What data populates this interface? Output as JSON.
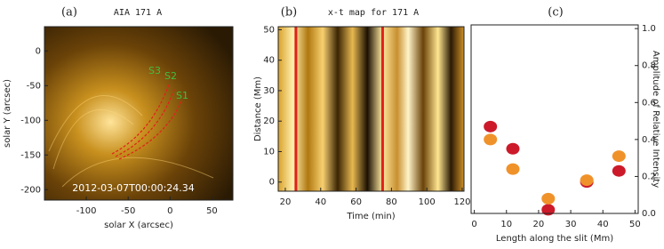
{
  "chart_data": [
    {
      "type": "image",
      "label": "(a)",
      "title": "AIA 171 A",
      "xlabel": "solar X (arcsec)",
      "ylabel": "solar Y (arcsec)",
      "xlim": [
        -150,
        75
      ],
      "ylim": [
        -215,
        35
      ],
      "xticks": [
        -100,
        -50,
        0,
        50
      ],
      "yticks": [
        -200,
        -150,
        -100,
        -50,
        0
      ],
      "annotations": [
        "S3",
        "S2",
        "S1",
        "2012-03-07T00:00:24.34"
      ]
    },
    {
      "type": "image",
      "label": "(b)",
      "title": "x-t map for 171 A",
      "xlabel": "Time (min)",
      "ylabel": "Distance (Mm)",
      "xlim": [
        16,
        121
      ],
      "ylim": [
        -3,
        51
      ],
      "xticks": [
        20,
        40,
        60,
        80,
        100,
        120
      ],
      "yticks": [
        0,
        10,
        20,
        30,
        40,
        50
      ],
      "markers": [
        26,
        75
      ],
      "marker_color": "#e0201c"
    },
    {
      "type": "scatter",
      "label": "(c)",
      "xlabel": "Length along the slit (Mm)",
      "ylabel": "Amplitude of Relative Intensity",
      "xlim": [
        -1,
        51
      ],
      "ylim": [
        0,
        1.02
      ],
      "xticks": [
        0,
        10,
        20,
        30,
        40,
        50
      ],
      "yticks": [
        {
          "value": 0,
          "label": "0.0"
        },
        0.2,
        0.4,
        0.6,
        0.8,
        {
          "value": 1,
          "label": "1.0"
        }
      ],
      "series": [
        {
          "color": "#cc1a2a",
          "x": [
            5,
            12,
            23,
            35,
            45
          ],
          "values": [
            0.47,
            0.35,
            0.02,
            0.17,
            0.23
          ]
        },
        {
          "color": "#f0922a",
          "x": [
            5,
            12,
            23,
            35,
            45
          ],
          "values": [
            0.4,
            0.24,
            0.08,
            0.18,
            0.31
          ]
        }
      ]
    }
  ]
}
